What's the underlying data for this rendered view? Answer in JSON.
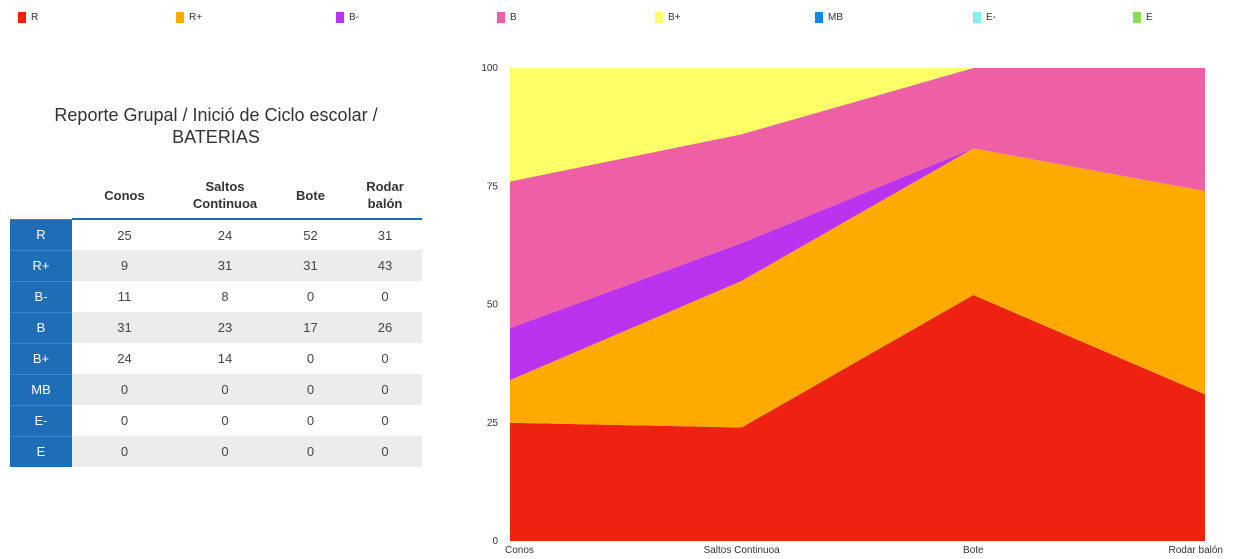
{
  "colors": {
    "R": "#ee2211",
    "R+": "#ffaa00",
    "B-": "#bb33ee",
    "B": "#ee5fa5",
    "B+": "#ffff66",
    "MB": "#1188ee",
    "E-": "#88eeee",
    "E": "#88dd55"
  },
  "report": {
    "title_line1": "Reporte Grupal / Inició de Ciclo escolar /",
    "title_line2": "BATERIAS",
    "columns": [
      "Conos",
      "Saltos Continuoa",
      "Bote",
      "Rodar balón"
    ],
    "rows": [
      {
        "label": "R",
        "values": [
          25,
          24,
          52,
          31
        ]
      },
      {
        "label": "R+",
        "values": [
          9,
          31,
          31,
          43
        ]
      },
      {
        "label": "B-",
        "values": [
          11,
          8,
          0,
          0
        ]
      },
      {
        "label": "B",
        "values": [
          31,
          23,
          17,
          26
        ]
      },
      {
        "label": "B+",
        "values": [
          24,
          14,
          0,
          0
        ]
      },
      {
        "label": "MB",
        "values": [
          0,
          0,
          0,
          0
        ]
      },
      {
        "label": "E-",
        "values": [
          0,
          0,
          0,
          0
        ]
      },
      {
        "label": "E",
        "values": [
          0,
          0,
          0,
          0
        ]
      }
    ]
  },
  "chart_data": {
    "type": "area",
    "stacked": true,
    "categories": [
      "Conos",
      "Saltos Continuoa",
      "Bote",
      "Rodar balón"
    ],
    "series": [
      {
        "name": "R",
        "values": [
          25,
          24,
          52,
          31
        ]
      },
      {
        "name": "R+",
        "values": [
          9,
          31,
          31,
          43
        ]
      },
      {
        "name": "B-",
        "values": [
          11,
          8,
          0,
          0
        ]
      },
      {
        "name": "B",
        "values": [
          31,
          23,
          17,
          26
        ]
      },
      {
        "name": "B+",
        "values": [
          24,
          14,
          0,
          0
        ]
      },
      {
        "name": "MB",
        "values": [
          0,
          0,
          0,
          0
        ]
      },
      {
        "name": "E-",
        "values": [
          0,
          0,
          0,
          0
        ]
      },
      {
        "name": "E",
        "values": [
          0,
          0,
          0,
          0
        ]
      }
    ],
    "ylim": [
      0,
      100
    ],
    "yticks": [
      0,
      25,
      50,
      75,
      100
    ],
    "grid": false,
    "legend_position": "top"
  }
}
